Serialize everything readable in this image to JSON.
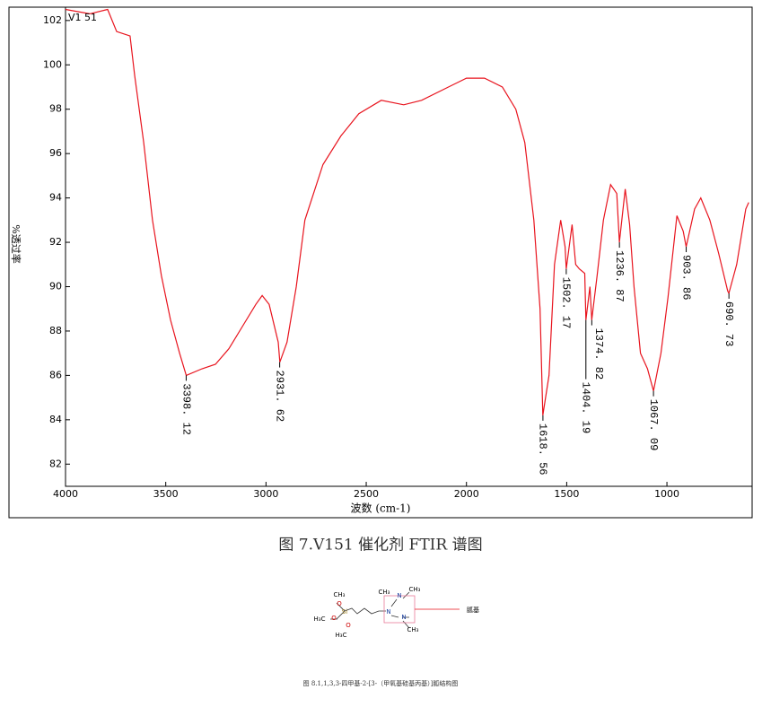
{
  "chart_data": {
    "type": "line",
    "x_label": "波数 (cm-1)",
    "y_label": "%透过率",
    "xlim": [
      4000,
      575
    ],
    "ylim": [
      81,
      102.6
    ],
    "xticks": [
      4000,
      3500,
      3000,
      2500,
      2000,
      1500,
      1000
    ],
    "yticks": [
      82,
      84,
      86,
      88,
      90,
      92,
      94,
      96,
      98,
      100,
      102
    ],
    "x": [
      4000,
      3879,
      3790,
      3745,
      3678,
      3655,
      3610,
      3566,
      3522,
      3476,
      3431,
      3398,
      3319,
      3252,
      3185,
      3118,
      3051,
      3019,
      2984,
      2939,
      2931,
      2895,
      2849,
      2806,
      2716,
      2626,
      2537,
      2425,
      2313,
      2224,
      2090,
      2000,
      1910,
      1821,
      1754,
      1709,
      1664,
      1633,
      1619,
      1588,
      1561,
      1530,
      1508,
      1502,
      1473,
      1455,
      1437,
      1410,
      1404,
      1384,
      1375,
      1348,
      1317,
      1281,
      1250,
      1237,
      1208,
      1186,
      1164,
      1132,
      1097,
      1067,
      1030,
      995,
      950,
      919,
      904,
      862,
      831,
      786,
      742,
      697,
      691,
      652,
      607,
      592
    ],
    "series": [
      {
        "name": "V1 51",
        "color": "#e8141e",
        "values": [
          102.5,
          102.3,
          102.5,
          101.5,
          101.3,
          99.5,
          96.5,
          93,
          90.5,
          88.5,
          87,
          86.0,
          86.3,
          86.5,
          87.2,
          88.2,
          89.2,
          89.6,
          89.2,
          87.5,
          86.6,
          87.5,
          90.0,
          93,
          95.5,
          96.8,
          97.8,
          98.4,
          98.2,
          98.4,
          99.0,
          99.4,
          99.4,
          99.0,
          98.0,
          96.5,
          93,
          89,
          84.2,
          86,
          91,
          93,
          91.8,
          90.8,
          92.8,
          91,
          90.8,
          90.6,
          88.5,
          90,
          88.5,
          90.5,
          93,
          94.6,
          94.2,
          92,
          94.4,
          92.8,
          90,
          87,
          86.3,
          85.3,
          87,
          89.5,
          93.2,
          92.5,
          91.8,
          93.5,
          94,
          93,
          91.5,
          89.8,
          89.7,
          91,
          93.5,
          93.8
        ]
      }
    ],
    "annotations": [
      {
        "label": "3398. 12",
        "x": 3398.12,
        "y": 86.0
      },
      {
        "label": "2931. 62",
        "x": 2931.62,
        "y": 86.6
      },
      {
        "label": "1618. 56",
        "x": 1618.56,
        "y": 84.2
      },
      {
        "label": "1502. 17",
        "x": 1502.17,
        "y": 90.8
      },
      {
        "label": "1404. 19",
        "x": 1404.19,
        "y": 88.5
      },
      {
        "label": "1374. 82",
        "x": 1374.82,
        "y": 88.5
      },
      {
        "label": "1236. 87",
        "x": 1236.87,
        "y": 92
      },
      {
        "label": "1067. 09",
        "x": 1067.09,
        "y": 85.3
      },
      {
        "label": "903. 86",
        "x": 903.86,
        "y": 91.8
      },
      {
        "label": "690. 73",
        "x": 690.73,
        "y": 89.7
      }
    ]
  },
  "captions": [
    "图 7.V151 催化剂 FTIR 谱图",
    "图 8.1,1,3,3-四甲基-2-[3-（甲氧基硅基丙基）]胍结构图"
  ],
  "molecule": {
    "atoms": [
      "CH₃",
      "Si",
      "O",
      "O",
      "O",
      "H₃C",
      "H₃C",
      "N",
      "CH₃",
      "N",
      "N",
      "CH₃",
      "CH₃"
    ],
    "note": "胍基"
  }
}
